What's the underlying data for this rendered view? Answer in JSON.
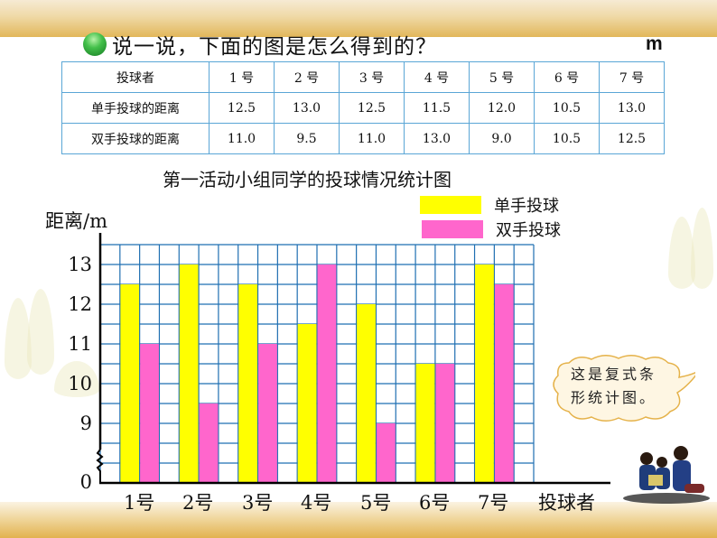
{
  "header": {
    "prompt": "说一说，下面的图是怎么得到的？",
    "unit": "m",
    "bullet_icon": "green-ball-icon"
  },
  "table": {
    "header_row": [
      "投球者",
      "1 号",
      "2 号",
      "3 号",
      "4 号",
      "5 号",
      "6 号",
      "7 号"
    ],
    "rows": [
      {
        "label": "单手投球的距离",
        "values": [
          "12.5",
          "13.0",
          "12.5",
          "11.5",
          "12.0",
          "10.5",
          "13.0"
        ]
      },
      {
        "label": "双手投球的距离",
        "values": [
          "11.0",
          "9.5",
          "11.0",
          "13.0",
          "9.0",
          "10.5",
          "12.5"
        ]
      }
    ]
  },
  "chart_data": {
    "type": "bar",
    "title": "第一活动小组同学的投球情况统计图",
    "xlabel": "投球者",
    "ylabel": "距离/m",
    "categories": [
      "1号",
      "2号",
      "3号",
      "4号",
      "5号",
      "6号",
      "7号"
    ],
    "series": [
      {
        "name": "单手投球",
        "color": "#ffff00",
        "values": [
          12.5,
          13.0,
          12.5,
          11.5,
          12.0,
          10.5,
          13.0
        ]
      },
      {
        "name": "双手投球",
        "color": "#ff66cc",
        "values": [
          11.0,
          9.5,
          11.0,
          13.0,
          9.0,
          10.5,
          12.5
        ]
      }
    ],
    "y_ticks": [
      "13",
      "12",
      "11",
      "10",
      "9",
      "0"
    ],
    "ylim": [
      8,
      13.5
    ],
    "y_axis_break": true,
    "grid": true,
    "grid_color": "#1f6fb2",
    "legend_position": "top-right"
  },
  "callout": {
    "line1": "这是复式条",
    "line2": "形统计图。"
  }
}
